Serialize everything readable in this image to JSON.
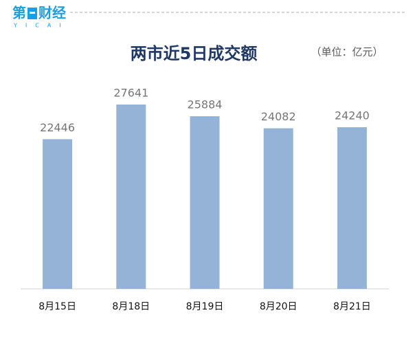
{
  "brand": {
    "left": "第",
    "right": "财经",
    "sub": "YICAI"
  },
  "chart_data": {
    "type": "bar",
    "title": "两市近5日成交额",
    "unit": "（单位：亿元）",
    "categories": [
      "8月15日",
      "8月18日",
      "8月19日",
      "8月20日",
      "8月21日"
    ],
    "values": [
      22446,
      27641,
      25884,
      24082,
      24240
    ],
    "color": "#95b3d7"
  }
}
